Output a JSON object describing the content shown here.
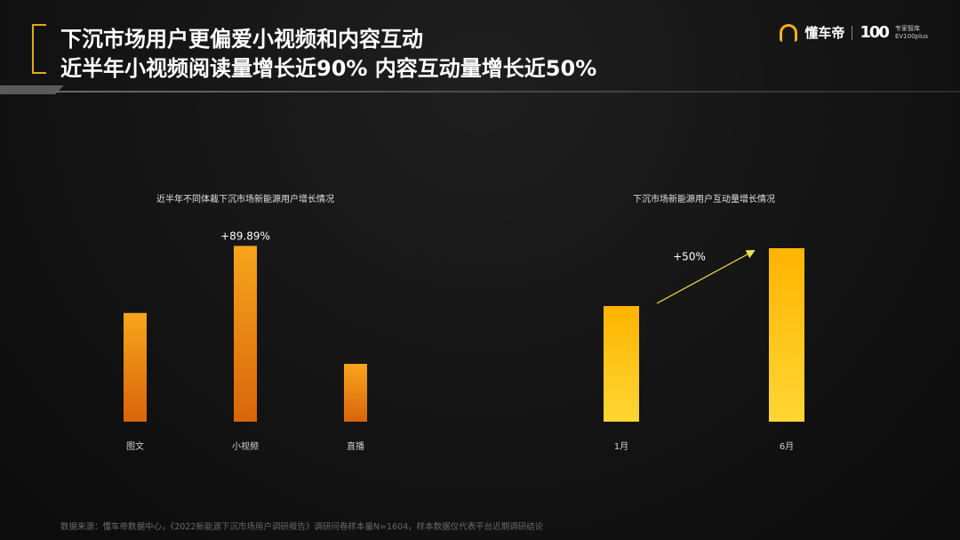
{
  "header": {
    "title_line1": "下沉市场用户更偏爱小视频和内容互动",
    "title_line2": "近半年小视频阅读量增长近90% 内容互动量增长近50%"
  },
  "brand": {
    "name": "懂车帝",
    "logo_number": "100",
    "sub_line1": "专家智库",
    "sub_line2": "EV100plus"
  },
  "footer": {
    "source": "数据来源：懂车帝数据中心，《2022新能源下沉市场用户调研报告》调研问卷样本量N=1604，样本数据仅代表平台近期调研结论"
  },
  "colors": {
    "accent": "#e8a617",
    "bar_left_top": "#f7a51c",
    "bar_left_bottom": "#d9650a",
    "bar_right_top": "#ffb400",
    "bar_right_bottom": "#ffd633",
    "arrow": "#f5e04a"
  },
  "chart_data": [
    {
      "type": "bar",
      "title": "近半年不同体裁下沉市场新能源用户增长情况",
      "categories": [
        "图文",
        "小视频",
        "直播"
      ],
      "values": [
        47,
        76,
        25
      ],
      "ylim": [
        0,
        100
      ],
      "annotations": [
        {
          "category": "小视频",
          "text": "+89.89%"
        }
      ]
    },
    {
      "type": "bar",
      "title": "下沉市场新能源用户互动量增长情况",
      "categories": [
        "1月",
        "6月"
      ],
      "values": [
        50,
        75
      ],
      "ylim": [
        0,
        100
      ],
      "annotations": [
        {
          "from": "1月",
          "to": "6月",
          "text": "+50%"
        }
      ]
    }
  ]
}
